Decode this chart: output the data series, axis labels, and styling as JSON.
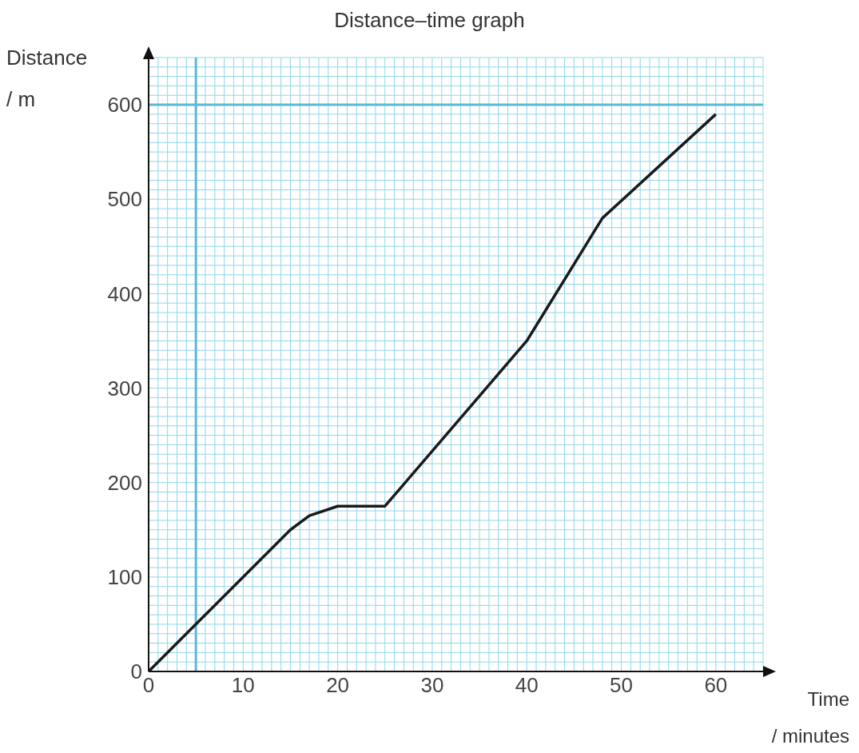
{
  "chart_data": {
    "type": "line",
    "title": "Distance–time graph",
    "xlabel": "Time\n/ minutes",
    "ylabel": "Distance\n/ m",
    "x": [
      0,
      15,
      17,
      20,
      25,
      40,
      48,
      60
    ],
    "series": [
      {
        "color": "#1a1a1a",
        "values": [
          0,
          150,
          165,
          175,
          175,
          350,
          480,
          590
        ]
      }
    ],
    "xlim": [
      0,
      65
    ],
    "xticks": [
      0,
      10,
      20,
      30,
      40,
      50,
      60
    ],
    "ylim": [
      0,
      650
    ],
    "yticks": [
      0,
      100,
      200,
      300,
      400,
      500,
      600
    ],
    "grid": true,
    "marker": "none",
    "line_style": "solid",
    "ref_lines": [
      {
        "axis": "x",
        "value": 5,
        "color": "#5bb8d8"
      },
      {
        "axis": "y",
        "value": 600,
        "color": "#5bb8d8"
      }
    ]
  }
}
